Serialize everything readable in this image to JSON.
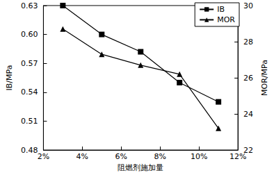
{
  "chart_data": {
    "type": "line",
    "x_label": "阻燃剂施加量",
    "y_label": "IB/MPa",
    "y2_label": "MOR/MPa",
    "x": [
      3,
      5,
      7,
      9,
      11
    ],
    "series": [
      {
        "name": "IB",
        "color": "#000000",
        "marker": "square",
        "values": [
          0.63,
          0.6,
          0.582,
          0.55,
          0.53
        ]
      },
      {
        "name": "MOR",
        "color": "#000000",
        "marker": "triangle",
        "axis": "y2",
        "values": [
          28.7,
          27.3,
          26.7,
          26.2,
          23.2
        ]
      }
    ],
    "xlim": [
      2,
      12
    ],
    "xticks": [
      {
        "value": 2,
        "label": "2%"
      },
      {
        "value": 4,
        "label": "4%"
      },
      {
        "value": 6,
        "label": "6%"
      },
      {
        "value": 8,
        "label": "8%"
      },
      {
        "value": 10,
        "label": "10%"
      },
      {
        "value": 12,
        "label": "12%"
      }
    ],
    "ylim": [
      0.48,
      0.63
    ],
    "yticks": [
      0.48,
      0.51,
      0.54,
      0.57,
      {
        "value": 0.6,
        "label": "0.60"
      },
      0.63
    ],
    "y2lim": [
      22,
      30
    ],
    "y2ticks": [
      22,
      24,
      26,
      28,
      30
    ],
    "grid": false,
    "legend": "upper right"
  }
}
